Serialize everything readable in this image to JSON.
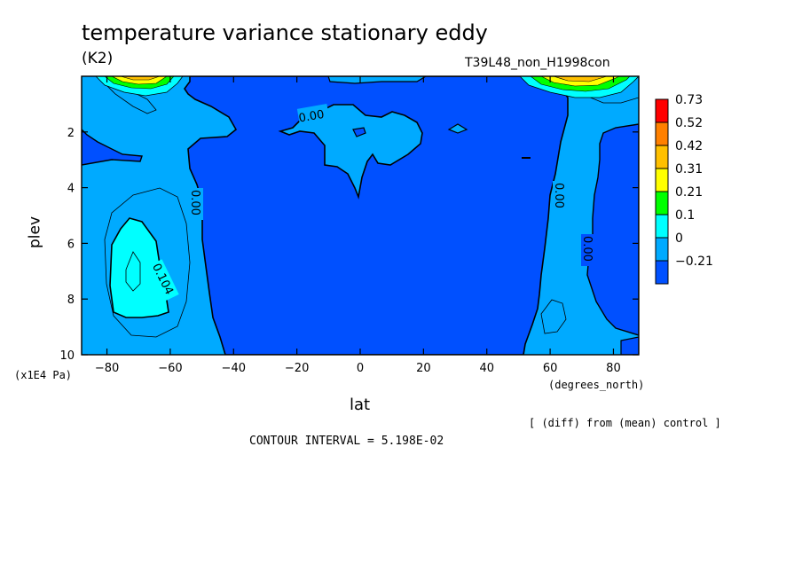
{
  "chart_data": {
    "type": "heatmap",
    "title": "temperature variance stationary eddy",
    "units": "(K2)",
    "run_label": "T39L48_non_H1998con",
    "xlabel": "lat",
    "xunit": "(degrees_north)",
    "ylabel": "plev",
    "yunit": "(x1E4 Pa)",
    "xlim": [
      -88,
      88
    ],
    "ylim": [
      0,
      10
    ],
    "y_reversed": true,
    "x_ticks": [
      -80,
      -60,
      -40,
      -20,
      0,
      20,
      40,
      60,
      80
    ],
    "y_ticks": [
      2,
      4,
      6,
      8,
      10
    ],
    "colorbar": {
      "levels": [
        "0.73",
        "0.52",
        "0.42",
        "0.31",
        "0.21",
        "0.1",
        "0",
        "-0.21"
      ],
      "colors": [
        "#ff0000",
        "#ff8000",
        "#ffc000",
        "#ffff00",
        "#00ff00",
        "#00ffff",
        "#00aaff",
        "#0050ff"
      ]
    },
    "contour_labels": [
      "0.00",
      "0.00",
      "0.00",
      "0.00",
      "0.104"
    ],
    "note": "[ (diff) from (mean) control ]",
    "contour_interval": "CONTOUR INTERVAL = 5.198E-02"
  },
  "colors": {
    "deep": "#0050ff",
    "mid": "#00aaff",
    "light": "#00ffff",
    "green": "#00ff00",
    "yellow": "#ffff00",
    "orange": "#ffc000"
  }
}
